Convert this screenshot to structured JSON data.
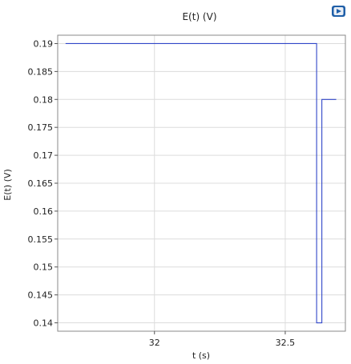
{
  "chart_data": {
    "type": "line",
    "title": "E(t) (V)",
    "xlabel": "t (s)",
    "ylabel": "E(t) (V)",
    "xlim": [
      31.63,
      32.73
    ],
    "ylim": [
      0.1385,
      0.1915
    ],
    "x_ticks": [
      32,
      32.5
    ],
    "x_tick_labels": [
      "32",
      "32.5"
    ],
    "y_ticks": [
      0.14,
      0.145,
      0.15,
      0.155,
      0.16,
      0.165,
      0.17,
      0.175,
      0.18,
      0.185,
      0.19
    ],
    "y_tick_labels": [
      "0.14",
      "0.145",
      "0.15",
      "0.155",
      "0.16",
      "0.165",
      "0.17",
      "0.175",
      "0.18",
      "0.185",
      "0.19"
    ],
    "grid": true,
    "series": [
      {
        "color": "#3046c8",
        "x": [
          31.66,
          32.62,
          32.62,
          32.64,
          32.64,
          32.695
        ],
        "y": [
          0.19,
          0.19,
          0.14,
          0.14,
          0.18,
          0.18
        ]
      }
    ]
  },
  "toolbar": {
    "logo_icon": "comsol-logo-icon"
  }
}
